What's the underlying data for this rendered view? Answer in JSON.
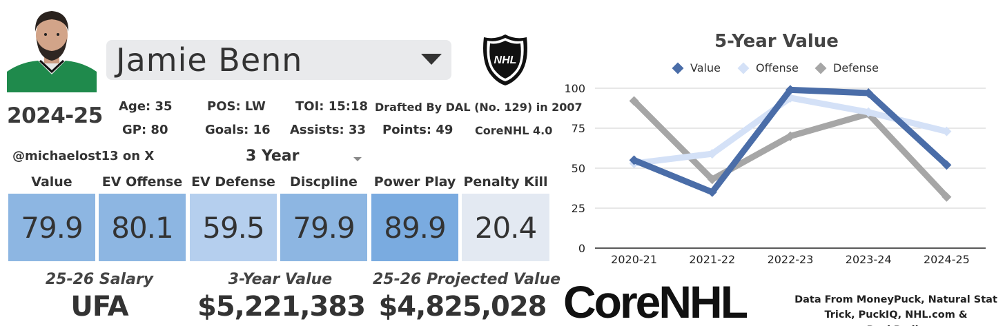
{
  "player": {
    "name": "Jamie Benn",
    "season": "2024-25"
  },
  "stats": {
    "age": "Age: 35",
    "pos": "POS: LW",
    "toi": "TOI: 15:18",
    "drafted": "Drafted By DAL (No. 129) in 2007",
    "gp": "GP: 80",
    "goals": "Goals: 16",
    "assists": "Assists: 33",
    "points": "Points: 49",
    "version": "CoreNHL 4.0"
  },
  "handle": "@michaelost13 on X",
  "year_selector": "3 Year",
  "metrics": [
    {
      "label": "Value",
      "value": "79.9",
      "color": "#8db6e2"
    },
    {
      "label": "EV Offense",
      "value": "80.1",
      "color": "#8db6e2"
    },
    {
      "label": "EV Defense",
      "value": "59.5",
      "color": "#b5cfee"
    },
    {
      "label": "Discpline",
      "value": "79.9",
      "color": "#8db6e2"
    },
    {
      "label": "Power Play",
      "value": "89.9",
      "color": "#7aabe0"
    },
    {
      "label": "Penalty Kill",
      "value": "20.4",
      "color": "#e3e9f2"
    }
  ],
  "contract": {
    "salary_label": "25-26 Salary",
    "salary_value": "UFA",
    "three_year_label": "3-Year Value",
    "three_year_value": "$5,221,383",
    "projected_label": "25-26 Projected Value",
    "projected_value": "$4,825,028"
  },
  "brand": {
    "logo_text": "CoreNHL",
    "credit": "Data From MoneyPuck, Natural Stat Trick, PuckIQ, NHL.com & PuckPedia"
  },
  "chart_data": {
    "type": "line",
    "title": "5-Year Value",
    "categories": [
      "2020-21",
      "2021-22",
      "2022-23",
      "2023-24",
      "2024-25"
    ],
    "ylim": [
      0,
      100
    ],
    "yticks": [
      0,
      25,
      50,
      75,
      100
    ],
    "grid": true,
    "legend_position": "top",
    "series": [
      {
        "name": "Defense",
        "color": "#a6a6a6",
        "values": [
          92,
          43,
          70,
          84,
          32
        ]
      },
      {
        "name": "Offense",
        "color": "#d4e1f7",
        "values": [
          53,
          59,
          94,
          85,
          73
        ]
      },
      {
        "name": "Value",
        "color": "#4a6da8",
        "values": [
          55,
          35,
          99,
          97,
          52
        ]
      }
    ]
  }
}
